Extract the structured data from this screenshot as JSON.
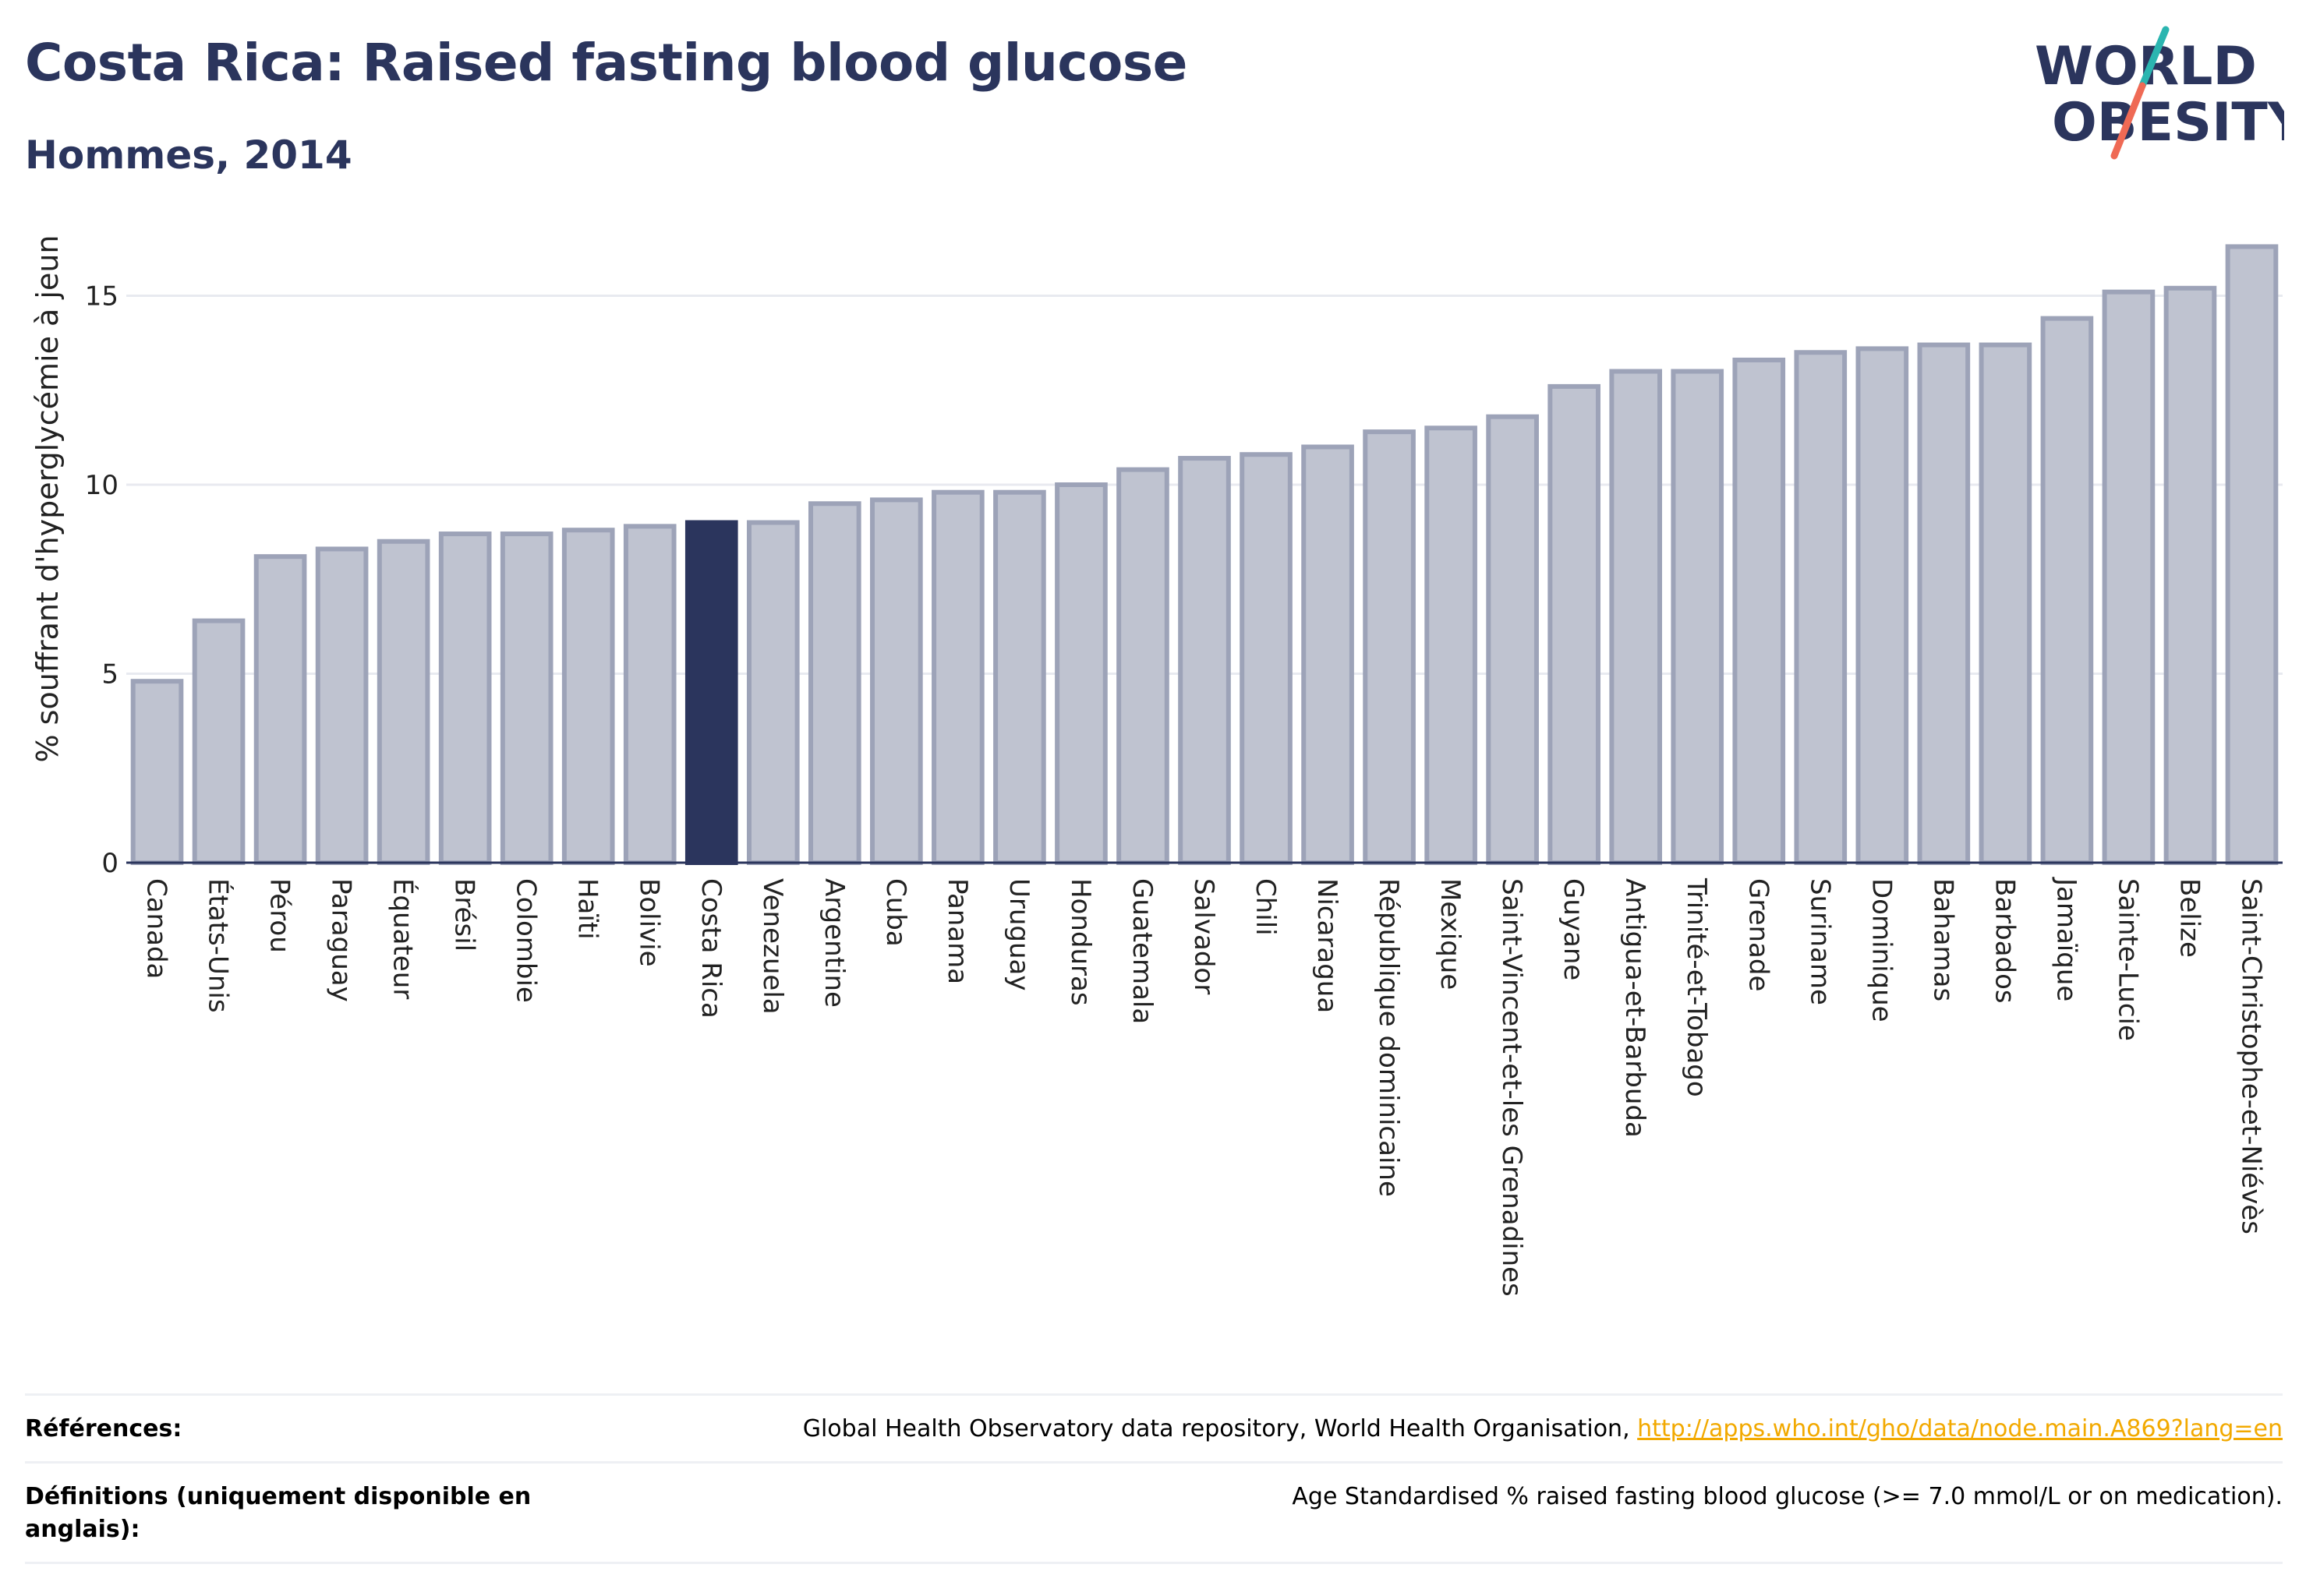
{
  "header": {
    "title": "Costa Rica: Raised fasting blood glucose",
    "subtitle": "Hommes, 2014"
  },
  "logo": {
    "line1": "WORLD",
    "line2": "OBESITY",
    "colors": {
      "text": "#2b355d",
      "teal": "#2bb5b0",
      "coral": "#ef6a55"
    }
  },
  "chart_data": {
    "type": "bar",
    "title": "",
    "xlabel": "",
    "ylabel": "% souffrant d'hyperglycémie à jeun",
    "ylim": [
      0,
      17
    ],
    "yticks": [
      0,
      5,
      10,
      15
    ],
    "grid": true,
    "highlight": "Costa Rica",
    "colors": {
      "bar": "#bfc3d0",
      "bar_edge": "#9da3b8",
      "highlight": "#2b355d",
      "grid": "#e8eaf0",
      "axis": "#2b355d"
    },
    "categories": [
      "Canada",
      "États-Unis",
      "Pérou",
      "Paraguay",
      "Équateur",
      "Brésil",
      "Colombie",
      "Haïti",
      "Bolivie",
      "Costa Rica",
      "Venezuela",
      "Argentine",
      "Cuba",
      "Panama",
      "Uruguay",
      "Honduras",
      "Guatemala",
      "Salvador",
      "Chili",
      "Nicaragua",
      "République dominicaine",
      "Mexique",
      "Saint-Vincent-et-les Grenadines",
      "Guyane",
      "Antigua-et-Barbuda",
      "Trinité-et-Tobago",
      "Grenade",
      "Suriname",
      "Dominique",
      "Bahamas",
      "Barbados",
      "Jamaïque",
      "Sainte-Lucie",
      "Belize",
      "Saint-Christophe-et-Niévès"
    ],
    "values": [
      4.8,
      6.4,
      8.1,
      8.3,
      8.5,
      8.7,
      8.7,
      8.8,
      8.9,
      9.0,
      9.0,
      9.5,
      9.6,
      9.8,
      9.8,
      10.0,
      10.4,
      10.7,
      10.8,
      11.0,
      11.4,
      11.5,
      11.8,
      12.6,
      13.0,
      13.0,
      13.3,
      13.5,
      13.6,
      13.7,
      13.7,
      14.4,
      15.1,
      15.2,
      16.3
    ]
  },
  "footer": {
    "references_label": "Références:",
    "references_text": "Global Health Observatory data repository, World Health Organisation, ",
    "references_link": "http://apps.who.int/gho/data/node.main.A869?lang=en",
    "definitions_label": "Définitions (uniquement disponible en anglais):",
    "definitions_text": "Age Standardised % raised fasting blood glucose (>= 7.0 mmol/L or on medication)."
  }
}
